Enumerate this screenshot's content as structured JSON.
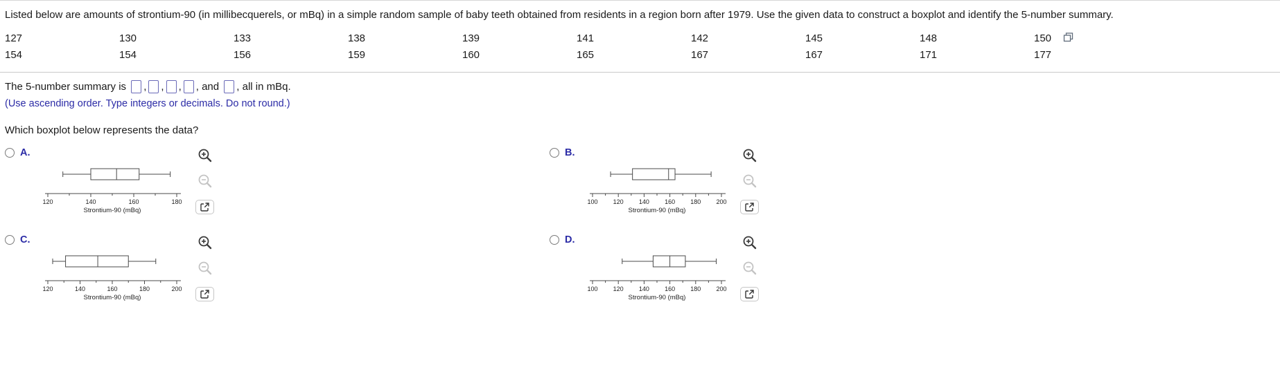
{
  "header": {
    "question_text": "Listed below are amounts of strontium-90 (in millibecquerels, or mBq) in a simple random sample of baby teeth obtained from residents in a region born after 1979. Use the given data to construct a boxplot and identify the 5-number summary."
  },
  "data_table": {
    "rows": [
      [
        127,
        130,
        133,
        138,
        139,
        141,
        142,
        145,
        148,
        150
      ],
      [
        154,
        154,
        156,
        159,
        160,
        165,
        167,
        167,
        171,
        177
      ]
    ]
  },
  "answer": {
    "prefix": "The 5-number summary is",
    "comma": ",",
    "and_label": "and",
    "suffix": ", all in mBq.",
    "note": "(Use ascending order. Type integers or decimals. Do not round.)",
    "inputs": [
      "",
      "",
      "",
      "",
      ""
    ]
  },
  "boxplot_question": "Which boxplot below represents the data?",
  "options": [
    {
      "letter": "A.",
      "selected": false
    },
    {
      "letter": "B.",
      "selected": false
    },
    {
      "letter": "C.",
      "selected": false
    },
    {
      "letter": "D.",
      "selected": false
    }
  ],
  "icons": {
    "zoom_in": "zoom-in-magnifier",
    "zoom_out": "zoom-out-magnifier",
    "launch": "open-graph-in-new-window",
    "data_tool": "copy-data-icon"
  },
  "colors": {
    "accent_blue": "#2b2ba6",
    "divider": "#c9c9c9",
    "plot_stroke": "#4a4a4a",
    "icon_enabled": "#3a3a3a",
    "icon_disabled": "#c3c3c3"
  },
  "chart_data": [
    {
      "type": "boxplot",
      "option": "A",
      "five_number_summary": {
        "min": 127,
        "q1": 140,
        "median": 152,
        "q3": 162.5,
        "max": 177
      },
      "axis": {
        "min": 120,
        "max": 180,
        "major_ticks": [
          120,
          140,
          160,
          180
        ]
      },
      "xlabel": "Strontium-90 (mBq)"
    },
    {
      "type": "boxplot",
      "option": "B",
      "five_number_summary": {
        "min": 114,
        "q1": 131,
        "median": 159,
        "q3": 164,
        "max": 192
      },
      "axis": {
        "min": 100,
        "max": 200,
        "major_ticks": [
          100,
          120,
          140,
          160,
          180,
          200
        ]
      },
      "xlabel": "Strontium-90 (mBq)"
    },
    {
      "type": "boxplot",
      "option": "C",
      "five_number_summary": {
        "min": 123,
        "q1": 131,
        "median": 151,
        "q3": 170,
        "max": 187
      },
      "axis": {
        "min": 120,
        "max": 200,
        "major_ticks": [
          120,
          140,
          160,
          180,
          200
        ]
      },
      "xlabel": "Strontium-90 (mBq)"
    },
    {
      "type": "boxplot",
      "option": "D",
      "five_number_summary": {
        "min": 123,
        "q1": 147,
        "median": 160,
        "q3": 172,
        "max": 196
      },
      "axis": {
        "min": 100,
        "max": 200,
        "major_ticks": [
          100,
          120,
          140,
          160,
          180,
          200
        ]
      },
      "xlabel": "Strontium-90 (mBq)"
    }
  ]
}
